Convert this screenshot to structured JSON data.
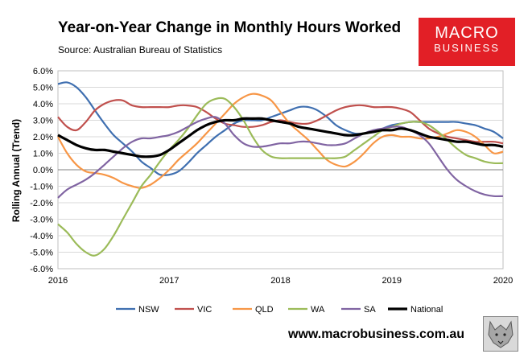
{
  "header": {
    "title": "Year-on-Year Change in Monthly Hours Worked",
    "source": "Source: Australian Bureau of Statistics"
  },
  "logo": {
    "line1": "MACRO",
    "line2": "BUSINESS"
  },
  "footer": {
    "url": "www.macrobusiness.com.au"
  },
  "chart_data": {
    "type": "line",
    "title": "Year-on-Year Change in Monthly Hours Worked",
    "ylabel": "Rolling Annual (Trend)",
    "xlabel": "",
    "xlim": [
      2016,
      2020
    ],
    "ylim": [
      -6,
      6
    ],
    "yticks": [
      "6.0%",
      "5.0%",
      "4.0%",
      "3.0%",
      "2.0%",
      "1.0%",
      "0.0%",
      "-1.0%",
      "-2.0%",
      "-3.0%",
      "-4.0%",
      "-5.0%",
      "-6.0%"
    ],
    "ytick_values": [
      6,
      5,
      4,
      3,
      2,
      1,
      0,
      -1,
      -2,
      -3,
      -4,
      -5,
      -6
    ],
    "xticks": [
      "2016",
      "2017",
      "2018",
      "2019",
      "2020"
    ],
    "xtick_values": [
      2016,
      2017,
      2018,
      2019,
      2020
    ],
    "legend_position": "bottom",
    "series": [
      {
        "name": "NSW",
        "color": "#3f6fb0",
        "width": 2.2,
        "x": [
          2016,
          2016.083,
          2016.167,
          2016.25,
          2016.333,
          2016.417,
          2016.5,
          2016.583,
          2016.667,
          2016.75,
          2016.833,
          2016.917,
          2017,
          2017.083,
          2017.167,
          2017.25,
          2017.333,
          2017.417,
          2017.5,
          2017.583,
          2017.667,
          2017.75,
          2017.833,
          2017.917,
          2018,
          2018.083,
          2018.167,
          2018.25,
          2018.333,
          2018.417,
          2018.5,
          2018.583,
          2018.667,
          2018.75,
          2018.833,
          2018.917,
          2019,
          2019.083,
          2019.167,
          2019.25,
          2019.333,
          2019.417,
          2019.5,
          2019.583,
          2019.667,
          2019.75,
          2019.833,
          2019.917,
          2020
        ],
        "y": [
          5.2,
          5.3,
          5.0,
          4.4,
          3.6,
          2.8,
          2.1,
          1.6,
          1.1,
          0.5,
          0.1,
          -0.3,
          -0.3,
          -0.1,
          0.4,
          1.0,
          1.5,
          2.0,
          2.4,
          2.8,
          3.0,
          3.0,
          3.0,
          3.2,
          3.4,
          3.6,
          3.8,
          3.8,
          3.6,
          3.2,
          2.7,
          2.4,
          2.2,
          2.2,
          2.3,
          2.5,
          2.7,
          2.8,
          2.9,
          2.9,
          2.9,
          2.9,
          2.9,
          2.9,
          2.8,
          2.7,
          2.5,
          2.3,
          1.9
        ]
      },
      {
        "name": "VIC",
        "color": "#c0504d",
        "width": 2.2,
        "x": [
          2016,
          2016.083,
          2016.167,
          2016.25,
          2016.333,
          2016.417,
          2016.5,
          2016.583,
          2016.667,
          2016.75,
          2016.833,
          2016.917,
          2017,
          2017.083,
          2017.167,
          2017.25,
          2017.333,
          2017.417,
          2017.5,
          2017.583,
          2017.667,
          2017.75,
          2017.833,
          2017.917,
          2018,
          2018.083,
          2018.167,
          2018.25,
          2018.333,
          2018.417,
          2018.5,
          2018.583,
          2018.667,
          2018.75,
          2018.833,
          2018.917,
          2019,
          2019.083,
          2019.167,
          2019.25,
          2019.333,
          2019.417,
          2019.5,
          2019.583,
          2019.667,
          2019.75,
          2019.833,
          2019.917,
          2020
        ],
        "y": [
          3.2,
          2.6,
          2.4,
          2.9,
          3.6,
          4.0,
          4.2,
          4.2,
          3.9,
          3.8,
          3.8,
          3.8,
          3.8,
          3.9,
          3.9,
          3.8,
          3.5,
          3.1,
          2.8,
          2.7,
          2.6,
          2.6,
          2.7,
          2.9,
          3.0,
          2.9,
          2.8,
          2.8,
          3.0,
          3.3,
          3.6,
          3.8,
          3.9,
          3.9,
          3.8,
          3.8,
          3.8,
          3.7,
          3.5,
          3.0,
          2.5,
          2.2,
          2.0,
          1.9,
          1.8,
          1.7,
          1.7,
          1.7,
          1.6
        ]
      },
      {
        "name": "QLD",
        "color": "#f79646",
        "width": 2.2,
        "x": [
          2016,
          2016.083,
          2016.167,
          2016.25,
          2016.333,
          2016.417,
          2016.5,
          2016.583,
          2016.667,
          2016.75,
          2016.833,
          2016.917,
          2017,
          2017.083,
          2017.167,
          2017.25,
          2017.333,
          2017.417,
          2017.5,
          2017.583,
          2017.667,
          2017.75,
          2017.833,
          2017.917,
          2018,
          2018.083,
          2018.167,
          2018.25,
          2018.333,
          2018.417,
          2018.5,
          2018.583,
          2018.667,
          2018.75,
          2018.833,
          2018.917,
          2019,
          2019.083,
          2019.167,
          2019.25,
          2019.333,
          2019.417,
          2019.5,
          2019.583,
          2019.667,
          2019.75,
          2019.833,
          2019.917,
          2020
        ],
        "y": [
          2.0,
          1.0,
          0.3,
          -0.1,
          -0.2,
          -0.3,
          -0.5,
          -0.8,
          -1.0,
          -1.1,
          -0.9,
          -0.5,
          0.0,
          0.6,
          1.1,
          1.6,
          2.2,
          2.8,
          3.4,
          4.0,
          4.4,
          4.6,
          4.5,
          4.2,
          3.5,
          2.8,
          2.3,
          1.8,
          1.2,
          0.6,
          0.3,
          0.2,
          0.5,
          1.0,
          1.6,
          2.0,
          2.1,
          2.0,
          2.0,
          1.9,
          1.9,
          2.0,
          2.2,
          2.4,
          2.3,
          2.0,
          1.5,
          1.0,
          1.1
        ]
      },
      {
        "name": "WA",
        "color": "#9bbb59",
        "width": 2.2,
        "x": [
          2016,
          2016.083,
          2016.167,
          2016.25,
          2016.333,
          2016.417,
          2016.5,
          2016.583,
          2016.667,
          2016.75,
          2016.833,
          2016.917,
          2017,
          2017.083,
          2017.167,
          2017.25,
          2017.333,
          2017.417,
          2017.5,
          2017.583,
          2017.667,
          2017.75,
          2017.833,
          2017.917,
          2018,
          2018.083,
          2018.167,
          2018.25,
          2018.333,
          2018.417,
          2018.5,
          2018.583,
          2018.667,
          2018.75,
          2018.833,
          2018.917,
          2019,
          2019.083,
          2019.167,
          2019.25,
          2019.333,
          2019.417,
          2019.5,
          2019.583,
          2019.667,
          2019.75,
          2019.833,
          2019.917,
          2020
        ],
        "y": [
          -3.3,
          -3.8,
          -4.5,
          -5.0,
          -5.2,
          -4.8,
          -4.0,
          -3.0,
          -2.0,
          -1.0,
          -0.3,
          0.5,
          1.2,
          1.8,
          2.5,
          3.3,
          4.0,
          4.3,
          4.3,
          3.8,
          3.0,
          2.0,
          1.2,
          0.8,
          0.7,
          0.7,
          0.7,
          0.7,
          0.7,
          0.7,
          0.7,
          0.8,
          1.2,
          1.6,
          2.0,
          2.4,
          2.6,
          2.8,
          2.9,
          2.9,
          2.7,
          2.3,
          1.8,
          1.3,
          0.9,
          0.7,
          0.5,
          0.4,
          0.4
        ]
      },
      {
        "name": "SA",
        "color": "#8064a2",
        "width": 2.2,
        "x": [
          2016,
          2016.083,
          2016.167,
          2016.25,
          2016.333,
          2016.417,
          2016.5,
          2016.583,
          2016.667,
          2016.75,
          2016.833,
          2016.917,
          2017,
          2017.083,
          2017.167,
          2017.25,
          2017.333,
          2017.417,
          2017.5,
          2017.583,
          2017.667,
          2017.75,
          2017.833,
          2017.917,
          2018,
          2018.083,
          2018.167,
          2018.25,
          2018.333,
          2018.417,
          2018.5,
          2018.583,
          2018.667,
          2018.75,
          2018.833,
          2018.917,
          2019,
          2019.083,
          2019.167,
          2019.25,
          2019.333,
          2019.417,
          2019.5,
          2019.583,
          2019.667,
          2019.75,
          2019.833,
          2019.917,
          2020
        ],
        "y": [
          -1.7,
          -1.2,
          -0.9,
          -0.6,
          -0.2,
          0.3,
          0.8,
          1.3,
          1.7,
          1.9,
          1.9,
          2.0,
          2.1,
          2.3,
          2.6,
          2.9,
          3.1,
          3.2,
          2.8,
          2.1,
          1.6,
          1.4,
          1.4,
          1.5,
          1.6,
          1.6,
          1.7,
          1.7,
          1.6,
          1.5,
          1.5,
          1.6,
          1.9,
          2.2,
          2.4,
          2.5,
          2.6,
          2.6,
          2.4,
          2.1,
          1.6,
          0.8,
          0.0,
          -0.6,
          -1.0,
          -1.3,
          -1.5,
          -1.6,
          -1.6
        ]
      },
      {
        "name": "National",
        "color": "#000000",
        "width": 3.2,
        "x": [
          2016,
          2016.083,
          2016.167,
          2016.25,
          2016.333,
          2016.417,
          2016.5,
          2016.583,
          2016.667,
          2016.75,
          2016.833,
          2016.917,
          2017,
          2017.083,
          2017.167,
          2017.25,
          2017.333,
          2017.417,
          2017.5,
          2017.583,
          2017.667,
          2017.75,
          2017.833,
          2017.917,
          2018,
          2018.083,
          2018.167,
          2018.25,
          2018.333,
          2018.417,
          2018.5,
          2018.583,
          2018.667,
          2018.75,
          2018.833,
          2018.917,
          2019,
          2019.083,
          2019.167,
          2019.25,
          2019.333,
          2019.417,
          2019.5,
          2019.583,
          2019.667,
          2019.75,
          2019.833,
          2019.917,
          2020
        ],
        "y": [
          2.1,
          1.8,
          1.5,
          1.3,
          1.2,
          1.2,
          1.1,
          1.0,
          0.9,
          0.8,
          0.8,
          0.9,
          1.2,
          1.6,
          2.0,
          2.4,
          2.7,
          2.9,
          3.0,
          3.0,
          3.1,
          3.1,
          3.1,
          3.0,
          2.9,
          2.8,
          2.6,
          2.5,
          2.4,
          2.3,
          2.2,
          2.1,
          2.1,
          2.2,
          2.3,
          2.4,
          2.4,
          2.5,
          2.4,
          2.2,
          2.0,
          1.9,
          1.8,
          1.7,
          1.7,
          1.6,
          1.5,
          1.5,
          1.4
        ]
      }
    ]
  }
}
